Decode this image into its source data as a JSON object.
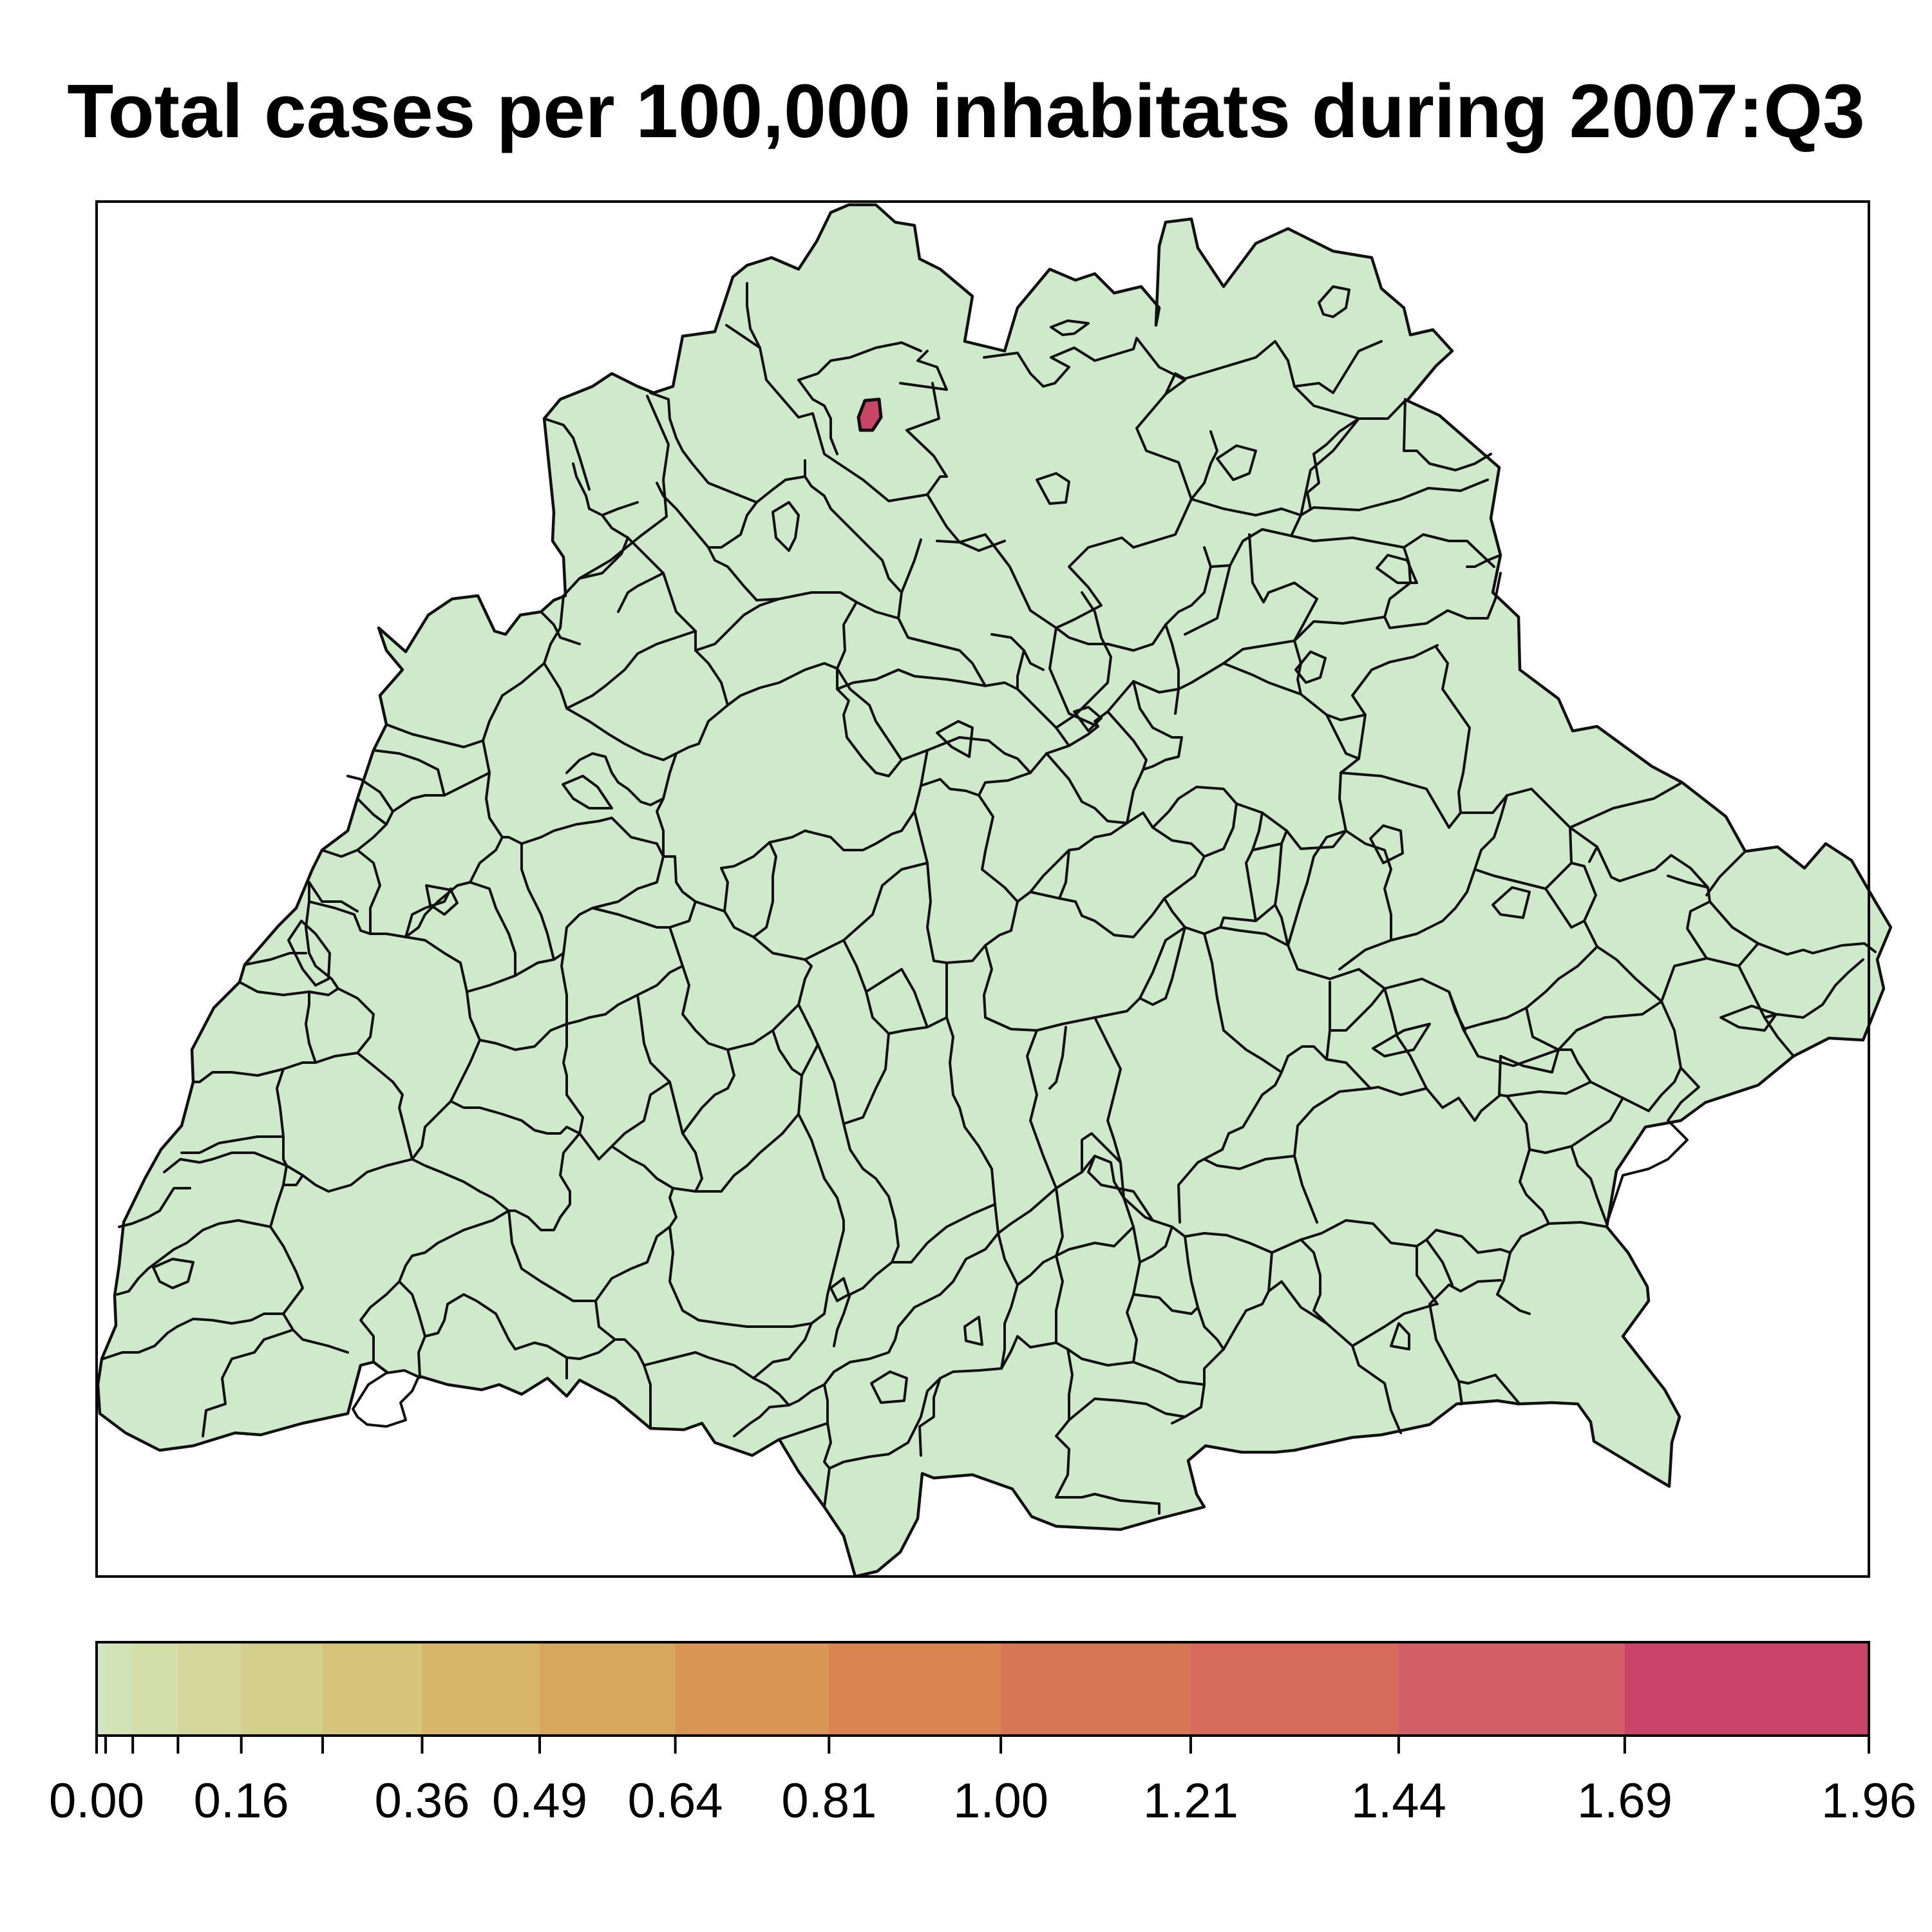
{
  "title": "Total cases per 100,000 inhabitats during 2007:Q3",
  "colors": {
    "district_fill": "#cfeaca",
    "highlight_fill": "#c94565",
    "border": "#111111"
  },
  "map": {
    "highlighted_districts": 1,
    "highlighted_value": 1.96
  },
  "legend": {
    "min": 0,
    "max": 1.96,
    "scale": "square-root",
    "bins": [
      {
        "from": 0.0,
        "to": 0.01,
        "color": "#cfe6c3"
      },
      {
        "from": 0.01,
        "to": 0.04,
        "color": "#d2e3b6"
      },
      {
        "from": 0.04,
        "to": 0.09,
        "color": "#d3dea9"
      },
      {
        "from": 0.09,
        "to": 0.16,
        "color": "#d4d79c"
      },
      {
        "from": 0.16,
        "to": 0.25,
        "color": "#d5cf8c"
      },
      {
        "from": 0.25,
        "to": 0.36,
        "color": "#d6c47b"
      },
      {
        "from": 0.36,
        "to": 0.49,
        "color": "#d7b56b"
      },
      {
        "from": 0.49,
        "to": 0.64,
        "color": "#d8a75e"
      },
      {
        "from": 0.64,
        "to": 0.81,
        "color": "#d89554"
      },
      {
        "from": 0.81,
        "to": 1.0,
        "color": "#d98451"
      },
      {
        "from": 1.0,
        "to": 1.21,
        "color": "#d77653"
      },
      {
        "from": 1.21,
        "to": 1.44,
        "color": "#d66b5b"
      },
      {
        "from": 1.44,
        "to": 1.69,
        "color": "#d25f66"
      },
      {
        "from": 1.69,
        "to": 1.96,
        "color": "#c94468"
      }
    ],
    "ticks": [
      0.0,
      0.01,
      0.04,
      0.09,
      0.16,
      0.25,
      0.36,
      0.49,
      0.64,
      0.81,
      1.0,
      1.21,
      1.44,
      1.69,
      1.96
    ],
    "labels": [
      {
        "value": 0.0,
        "text": "0.00"
      },
      {
        "value": 0.16,
        "text": "0.16"
      },
      {
        "value": 0.36,
        "text": "0.36"
      },
      {
        "value": 0.49,
        "text": "0.49"
      },
      {
        "value": 0.64,
        "text": "0.64"
      },
      {
        "value": 0.81,
        "text": "0.81"
      },
      {
        "value": 1.0,
        "text": "1.00"
      },
      {
        "value": 1.21,
        "text": "1.21"
      },
      {
        "value": 1.44,
        "text": "1.44"
      },
      {
        "value": 1.69,
        "text": "1.69"
      },
      {
        "value": 1.96,
        "text": "1.96"
      }
    ]
  }
}
